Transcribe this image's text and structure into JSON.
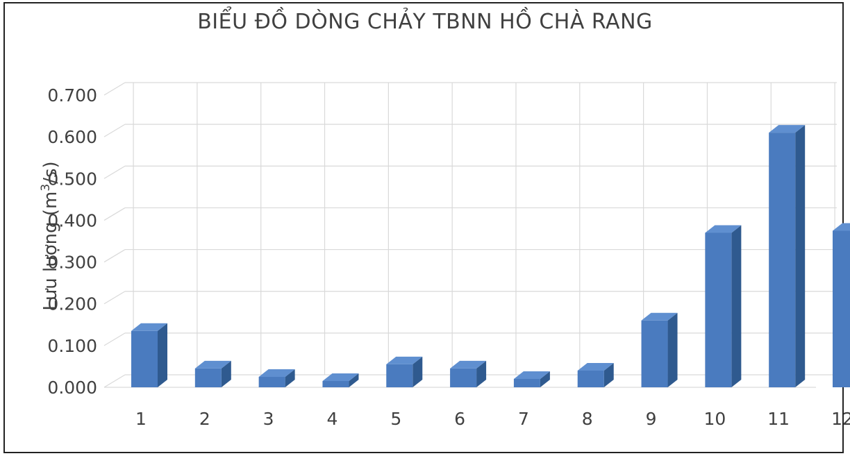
{
  "chart_data": {
    "type": "bar",
    "title": "BIỂU ĐỒ DÒNG CHẢY TBNN HỒ CHÀ RANG",
    "ylabel_prefix": "Lưu lượng (m",
    "ylabel_sup": "3",
    "ylabel_suffix": "/s)",
    "xlabel": "",
    "categories": [
      "1",
      "2",
      "3",
      "4",
      "5",
      "6",
      "7",
      "8",
      "9",
      "10",
      "11",
      "12"
    ],
    "values": [
      0.135,
      0.045,
      0.025,
      0.015,
      0.055,
      0.045,
      0.02,
      0.04,
      0.16,
      0.37,
      0.61,
      0.375
    ],
    "yticks": [
      "0.000",
      "0.100",
      "0.200",
      "0.300",
      "0.400",
      "0.500",
      "0.600",
      "0.700"
    ],
    "ylim": [
      0,
      0.7
    ],
    "grid": true,
    "legend": "none",
    "colors": {
      "bar_front": "#4a7bbf",
      "bar_top": "#5f8fd0",
      "bar_side": "#2f5a8f",
      "grid": "#d9d9d9",
      "text": "#404040"
    }
  }
}
